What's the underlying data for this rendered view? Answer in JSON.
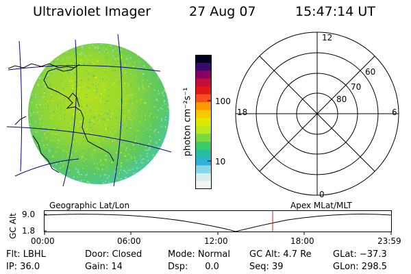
{
  "header": {
    "title": "Ultraviolet Imager",
    "date": "27 Aug 07",
    "time": "15:47:14 UT"
  },
  "colorbar": {
    "label": "photon cm⁻²s⁻¹",
    "ticks": [
      "100",
      "10"
    ],
    "colors": [
      "#000020",
      "#3a0a6a",
      "#8a0060",
      "#c0103a",
      "#e01818",
      "#f5501e",
      "#ff9a00",
      "#f5c800",
      "#e0e800",
      "#b8e820",
      "#7ad840",
      "#3ccc66",
      "#22c0a0",
      "#30b0d8",
      "#86d8e6",
      "#d8ecf0",
      "#f4f4f4"
    ]
  },
  "polar": {
    "lat_labels": [
      "80",
      "70",
      "60"
    ],
    "mlt_labels": {
      "top": "12",
      "left": "18",
      "right": "6",
      "bottom": "0"
    }
  },
  "timeline": {
    "left_title": "Geographic Lat/Lon",
    "right_title": "Apex MLat/MLT",
    "axis_label": "GC Alt",
    "y_top": "9.0",
    "y_bottom": "1.8",
    "x_ticks": [
      "00:00",
      "06:00",
      "12:00",
      "18:00",
      "23:59"
    ],
    "current_time": "15:47",
    "marker_color": "#d42020"
  },
  "info": {
    "flt": "Flt: LBHL",
    "ip": "IP: 36.0",
    "door": "Door: Closed",
    "gain": "Gain: 14",
    "mode": "Mode: Normal",
    "dsp": "Dsp:      0.0",
    "gcalt": "GC Alt: 4.7 Re",
    "seq": "Seq: 39",
    "glat": "GLat: −37.3",
    "glon": "GLon: 298.5"
  }
}
